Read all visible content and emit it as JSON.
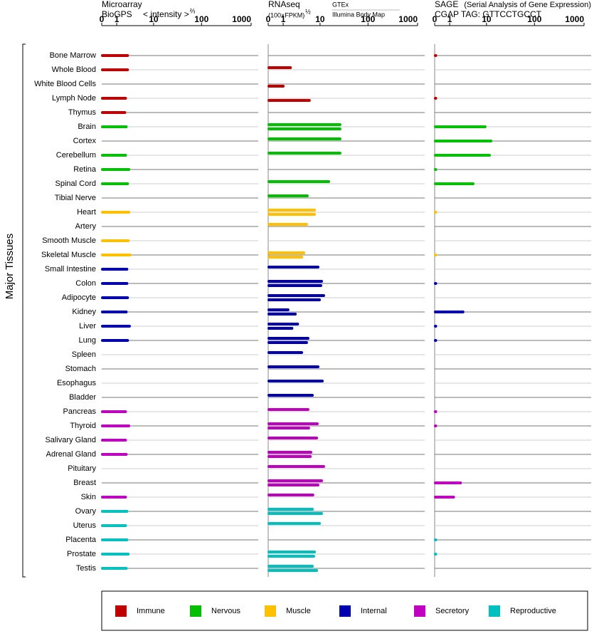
{
  "y_axis_label": "Major Tissues",
  "tissue_groups": [
    {
      "name": "Immune",
      "color": "#c00000",
      "tissues": [
        "Bone Marrow",
        "Whole Blood",
        "White Blood Cells",
        "Lymph Node",
        "Thymus"
      ]
    },
    {
      "name": "Nervous",
      "color": "#00c000",
      "tissues": [
        "Brain",
        "Cortex",
        "Cerebellum",
        "Retina",
        "Spinal Cord",
        "Tibial Nerve"
      ]
    },
    {
      "name": "Muscle",
      "color": "#ffc000",
      "tissues": [
        "Heart",
        "Artery",
        "Smooth Muscle",
        "Skeletal Muscle"
      ]
    },
    {
      "name": "Internal",
      "color": "#0000b0",
      "tissues": [
        "Small Intestine",
        "Colon",
        "Adipocyte",
        "Kidney",
        "Liver",
        "Lung",
        "Spleen",
        "Stomach",
        "Esophagus",
        "Bladder"
      ]
    },
    {
      "name": "Secretory",
      "color": "#c000c0",
      "tissues": [
        "Pancreas",
        "Thyroid",
        "Salivary Gland",
        "Adrenal Gland",
        "Pituitary",
        "Breast",
        "Skin"
      ]
    },
    {
      "name": "Reproductive",
      "color": "#00c0c0",
      "tissues": [
        "Ovary",
        "Uterus",
        "Placenta",
        "Prostate",
        "Testis"
      ]
    }
  ],
  "chart_data": [
    {
      "type": "bar",
      "title": "Microarray",
      "source": "BioGPS",
      "axis_label": "< intensity >",
      "axis_exponent": "⅔",
      "scale": "log1p",
      "xlim": [
        0,
        1000
      ],
      "xticks": [
        0,
        1,
        10,
        100,
        1000
      ],
      "values": [
        2.3,
        2.3,
        null,
        2.0,
        1.9,
        2.1,
        null,
        2.0,
        2.5,
        2.3,
        null,
        2.5,
        null,
        2.4,
        2.7,
        2.2,
        2.2,
        2.3,
        2.1,
        2.6,
        2.3,
        null,
        null,
        null,
        null,
        2.0,
        2.5,
        2.0,
        2.1,
        null,
        null,
        2.0,
        2.2,
        2.0,
        2.2,
        2.4,
        2.1
      ]
    },
    {
      "type": "bar",
      "title": "RNAseq",
      "axis_label": "(100×FPKM)",
      "axis_exponent": "½",
      "scale": "log1p",
      "xlim": [
        0,
        1000
      ],
      "xticks": [
        0,
        1,
        10,
        100,
        1000
      ],
      "series": [
        {
          "name": "GTEx",
          "color": "#000080",
          "values": [
            null,
            1.8,
            null,
            null,
            null,
            26.7,
            26.7,
            26.7,
            null,
            15.4,
            5.1,
            7.5,
            4.9,
            null,
            4.2,
            9.0,
            10.8,
            12.0,
            1.5,
            2.9,
            5.3,
            3.7,
            9.0,
            11.2,
            6.7,
            5.3,
            8.7,
            8.4,
            6.2,
            12.0,
            10.8,
            6.9,
            6.7,
            9.7,
            null,
            7.5,
            6.7
          ]
        },
        {
          "name": "Illumina Body Map",
          "color": "#000000",
          "values": [
            null,
            null,
            1.0,
            5.7,
            null,
            26.7,
            null,
            null,
            null,
            null,
            null,
            7.5,
            null,
            null,
            3.7,
            null,
            10.4,
            9.7,
            2.5,
            2.0,
            4.9,
            null,
            null,
            null,
            null,
            null,
            5.5,
            null,
            6.0,
            null,
            9.0,
            null,
            10.8,
            null,
            null,
            7.2,
            8.4
          ]
        }
      ]
    },
    {
      "type": "bar",
      "title": "SAGE",
      "subtitle": "(Serial Analysis of Gene Expression)",
      "source": "CGAP TAG: GTTCCTGCCT",
      "scale": "log1p",
      "xlim": [
        0,
        1000
      ],
      "xticks": [
        0,
        1,
        10,
        100,
        1000
      ],
      "values": [
        0.05,
        null,
        null,
        0.05,
        null,
        9.3,
        12.5,
        11.6,
        0.05,
        4.9,
        null,
        0.05,
        null,
        null,
        0.05,
        null,
        0.05,
        null,
        2.7,
        0.05,
        0.05,
        null,
        null,
        null,
        null,
        0.05,
        0.05,
        null,
        null,
        null,
        2.3,
        1.4,
        null,
        null,
        0.05,
        0.05,
        null
      ]
    }
  ]
}
